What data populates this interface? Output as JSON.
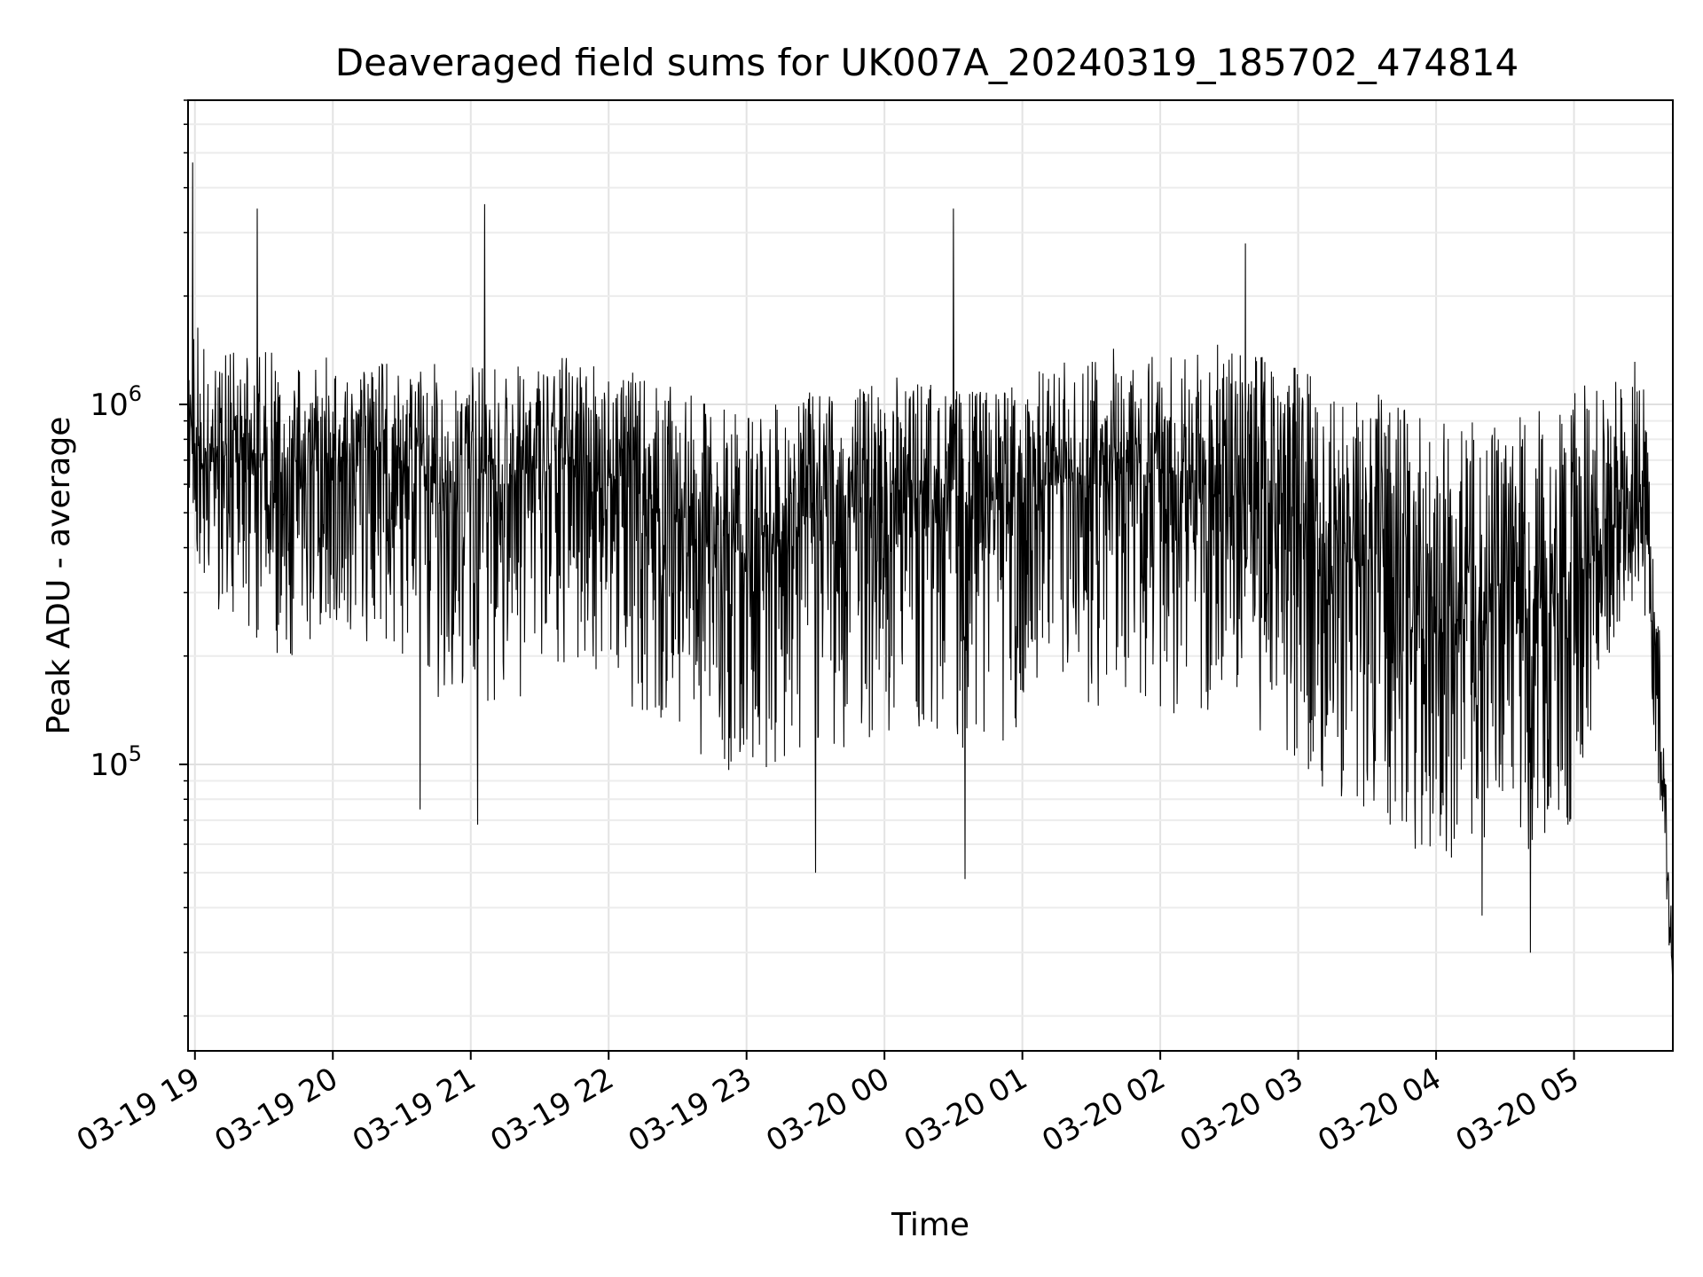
{
  "chart_data": {
    "type": "line",
    "title": "Deaveraged field sums for UK007A_20240319_185702_474814",
    "xlabel": "Time",
    "ylabel": "Peak ADU - average",
    "yscale": "log",
    "ylim": [
      16000,
      7000000
    ],
    "xlim": [
      "2024-03-19 18:57",
      "2024-03-20 05:43"
    ],
    "grid": true,
    "line_color": "#000000",
    "x_ticks": [
      {
        "value": "2024-03-19 19:00",
        "label": "03-19 19"
      },
      {
        "value": "2024-03-19 20:00",
        "label": "03-19 20"
      },
      {
        "value": "2024-03-19 21:00",
        "label": "03-19 21"
      },
      {
        "value": "2024-03-19 22:00",
        "label": "03-19 22"
      },
      {
        "value": "2024-03-19 23:00",
        "label": "03-19 23"
      },
      {
        "value": "2024-03-20 00:00",
        "label": "03-20 00"
      },
      {
        "value": "2024-03-20 01:00",
        "label": "03-20 01"
      },
      {
        "value": "2024-03-20 02:00",
        "label": "03-20 02"
      },
      {
        "value": "2024-03-20 03:00",
        "label": "03-20 03"
      },
      {
        "value": "2024-03-20 04:00",
        "label": "03-20 04"
      },
      {
        "value": "2024-03-20 05:00",
        "label": "03-20 05"
      }
    ],
    "y_ticks": [
      {
        "value": 100000,
        "base": "10",
        "exp": "5"
      },
      {
        "value": 1000000,
        "base": "10",
        "exp": "6"
      }
    ],
    "series": [
      {
        "x": [
          "2024-03-19 18:57",
          "2024-03-19 19:00",
          "2024-03-19 19:15",
          "2024-03-19 19:30",
          "2024-03-19 19:45",
          "2024-03-19 20:00",
          "2024-03-19 20:15",
          "2024-03-19 20:30",
          "2024-03-19 20:45",
          "2024-03-19 21:00",
          "2024-03-19 21:15",
          "2024-03-19 21:30",
          "2024-03-19 21:45",
          "2024-03-19 22:00",
          "2024-03-19 22:15",
          "2024-03-19 22:30",
          "2024-03-19 22:45",
          "2024-03-19 23:00",
          "2024-03-19 23:15",
          "2024-03-19 23:30",
          "2024-03-19 23:45",
          "2024-03-20 00:00",
          "2024-03-20 00:15",
          "2024-03-20 00:30",
          "2024-03-20 00:45",
          "2024-03-20 01:00",
          "2024-03-20 01:15",
          "2024-03-20 01:30",
          "2024-03-20 01:45",
          "2024-03-20 02:00",
          "2024-03-20 02:15",
          "2024-03-20 02:30",
          "2024-03-20 02:45",
          "2024-03-20 03:00",
          "2024-03-20 03:15",
          "2024-03-20 03:30",
          "2024-03-20 03:45",
          "2024-03-20 04:00",
          "2024-03-20 04:15",
          "2024-03-20 04:30",
          "2024-03-20 04:45",
          "2024-03-20 05:00",
          "2024-03-20 05:15",
          "2024-03-20 05:30",
          "2024-03-20 05:38",
          "2024-03-20 05:43"
        ],
        "median": [
          700000,
          750000,
          700000,
          700000,
          700000,
          720000,
          700000,
          650000,
          600000,
          650000,
          650000,
          650000,
          700000,
          650000,
          550000,
          500000,
          400000,
          400000,
          450000,
          500000,
          500000,
          550000,
          550000,
          550000,
          520000,
          550000,
          600000,
          600000,
          650000,
          650000,
          600000,
          550000,
          600000,
          500000,
          400000,
          350000,
          300000,
          250000,
          250000,
          250000,
          250000,
          300000,
          450000,
          550000,
          100000,
          25000
        ],
        "upper": [
          1200000,
          2000000,
          1400000,
          1500000,
          1300000,
          1400000,
          1300000,
          1300000,
          1300000,
          1300000,
          1300000,
          1300000,
          1400000,
          1300000,
          1200000,
          1100000,
          1000000,
          1000000,
          1000000,
          1100000,
          1100000,
          1200000,
          1200000,
          1100000,
          1100000,
          1200000,
          1300000,
          1400000,
          1500000,
          1400000,
          1400000,
          1500000,
          1400000,
          1300000,
          1200000,
          1100000,
          1000000,
          900000,
          900000,
          900000,
          1000000,
          1100000,
          1200000,
          1400000,
          200000,
          30000
        ],
        "lower": [
          400000,
          300000,
          250000,
          200000,
          200000,
          250000,
          200000,
          180000,
          150000,
          150000,
          150000,
          150000,
          180000,
          180000,
          130000,
          120000,
          100000,
          90000,
          100000,
          110000,
          110000,
          120000,
          120000,
          110000,
          110000,
          120000,
          130000,
          140000,
          150000,
          140000,
          130000,
          120000,
          120000,
          100000,
          80000,
          70000,
          60000,
          55000,
          55000,
          55000,
          55000,
          70000,
          200000,
          300000,
          60000,
          22000
        ],
        "peaks": [
          {
            "x": "2024-03-19 18:59",
            "y": 4700000
          },
          {
            "x": "2024-03-19 19:27",
            "y": 3500000
          },
          {
            "x": "2024-03-19 21:06",
            "y": 3600000
          },
          {
            "x": "2024-03-20 00:30",
            "y": 3500000
          },
          {
            "x": "2024-03-20 02:37",
            "y": 2800000
          }
        ],
        "dips": [
          {
            "x": "2024-03-19 20:38",
            "y": 75000
          },
          {
            "x": "2024-03-19 21:03",
            "y": 68000
          },
          {
            "x": "2024-03-19 23:30",
            "y": 50000
          },
          {
            "x": "2024-03-20 00:35",
            "y": 48000
          },
          {
            "x": "2024-03-20 04:20",
            "y": 38000
          },
          {
            "x": "2024-03-20 04:41",
            "y": 30000
          }
        ]
      }
    ]
  }
}
